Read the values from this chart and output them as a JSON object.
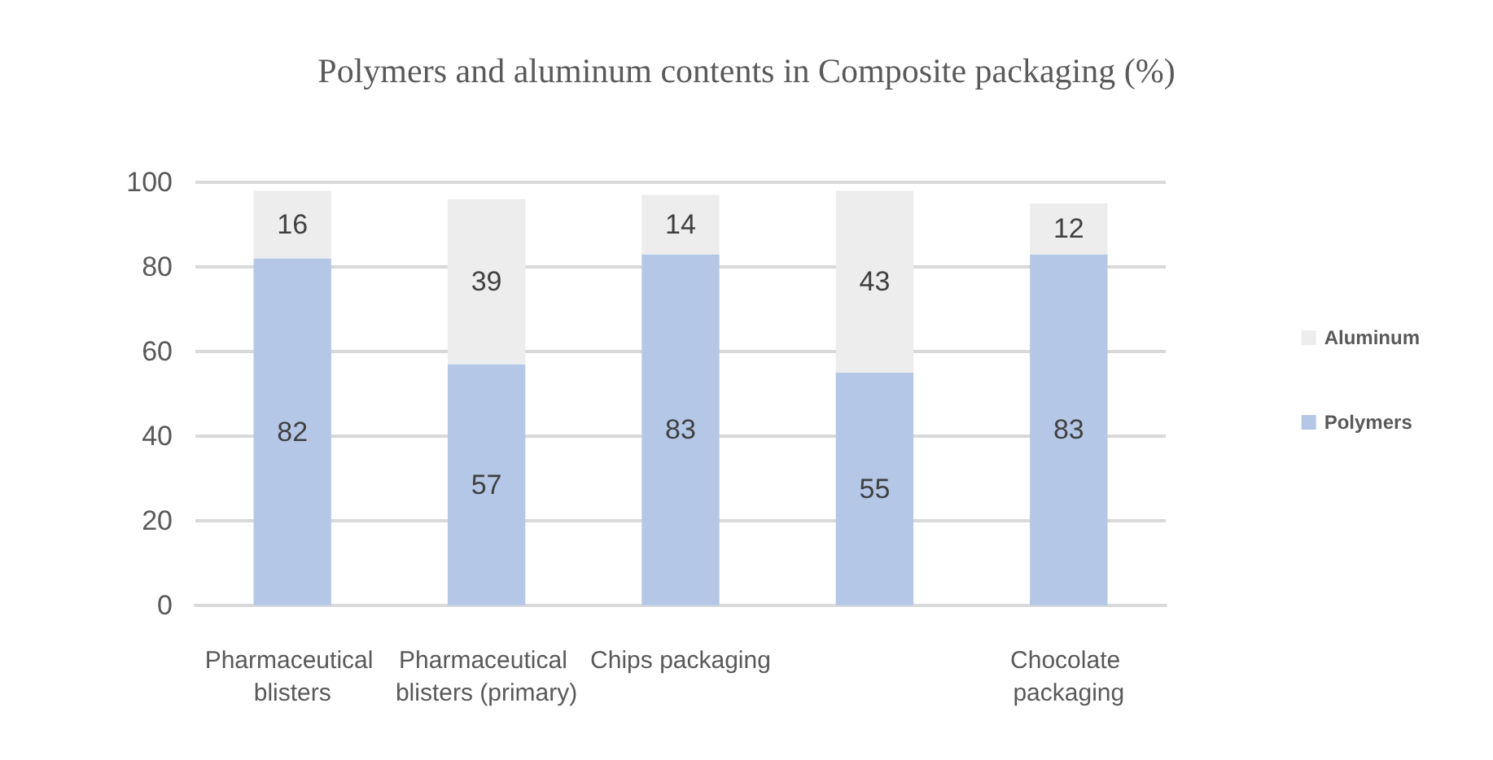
{
  "chart_data": {
    "type": "bar",
    "title": "Polymers and aluminum contents in Composite packaging (%)",
    "categories": [
      "Pharmaceutical blisters",
      "Pharmaceutical blisters (primary)",
      "Chips packaging",
      null,
      "Chocolate packaging"
    ],
    "series": [
      {
        "name": "Polymers",
        "color": "#b4c7e7",
        "values": [
          82,
          57,
          83,
          55,
          83
        ]
      },
      {
        "name": "Aluminum",
        "color": "#ededed",
        "values": [
          16,
          39,
          14,
          43,
          12
        ]
      }
    ],
    "stacked": true,
    "data_labels": true,
    "ylim": [
      0,
      100
    ],
    "yticks": [
      0,
      20,
      40,
      60,
      80,
      100
    ],
    "grid": "y",
    "legend": "right"
  }
}
